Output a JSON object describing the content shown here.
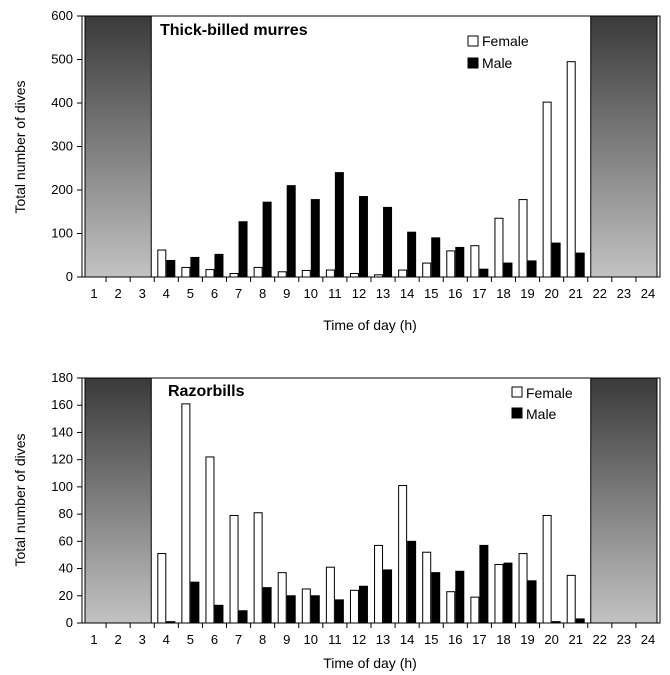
{
  "chart_data": [
    {
      "type": "bar",
      "title": "Thick-billed murres",
      "xlabel": "Time of day (h)",
      "ylabel": "Total number of dives",
      "ylim": [
        0,
        600
      ],
      "yticks": [
        "0",
        "100",
        "200",
        "300",
        "400",
        "500",
        "600"
      ],
      "categories": [
        "1",
        "2",
        "3",
        "4",
        "5",
        "6",
        "7",
        "8",
        "9",
        "10",
        "11",
        "12",
        "13",
        "14",
        "15",
        "16",
        "17",
        "18",
        "19",
        "20",
        "21",
        "22",
        "23",
        "24"
      ],
      "series": [
        {
          "name": "Female",
          "color": "#ffffff",
          "values": [
            null,
            null,
            null,
            62,
            22,
            17,
            8,
            22,
            12,
            15,
            16,
            8,
            5,
            16,
            32,
            60,
            72,
            135,
            178,
            402,
            495,
            null,
            null,
            null
          ]
        },
        {
          "name": "Male",
          "color": "#000000",
          "values": [
            null,
            null,
            null,
            38,
            45,
            52,
            127,
            172,
            210,
            178,
            240,
            185,
            160,
            103,
            90,
            68,
            18,
            32,
            37,
            78,
            55,
            null,
            null,
            null
          ]
        }
      ],
      "night_shading": {
        "start_hour": 1,
        "end_hour": 3,
        "start_hour_2": 22,
        "end_hour_2": 24
      },
      "legend_position": "top-right",
      "grid": false
    },
    {
      "type": "bar",
      "title": "Razorbills",
      "xlabel": "Time of day (h)",
      "ylabel": "Total number of dives",
      "ylim": [
        0,
        180
      ],
      "yticks": [
        "0",
        "20",
        "40",
        "60",
        "80",
        "100",
        "120",
        "140",
        "160",
        "180"
      ],
      "categories": [
        "1",
        "2",
        "3",
        "4",
        "5",
        "6",
        "7",
        "8",
        "9",
        "10",
        "11",
        "12",
        "13",
        "14",
        "15",
        "16",
        "17",
        "18",
        "19",
        "20",
        "21",
        "22",
        "23",
        "24"
      ],
      "series": [
        {
          "name": "Female",
          "color": "#ffffff",
          "values": [
            null,
            null,
            null,
            51,
            161,
            122,
            79,
            81,
            37,
            25,
            41,
            24,
            57,
            101,
            52,
            23,
            19,
            43,
            51,
            79,
            35,
            null,
            null,
            null
          ]
        },
        {
          "name": "Male",
          "color": "#000000",
          "values": [
            null,
            null,
            null,
            1,
            30,
            13,
            9,
            26,
            20,
            20,
            17,
            27,
            39,
            60,
            37,
            38,
            57,
            44,
            31,
            1,
            3,
            null,
            null,
            null
          ]
        }
      ],
      "night_shading": {
        "start_hour": 1,
        "end_hour": 3,
        "start_hour_2": 22,
        "end_hour_2": 24
      },
      "legend_position": "top-right",
      "grid": false
    }
  ]
}
